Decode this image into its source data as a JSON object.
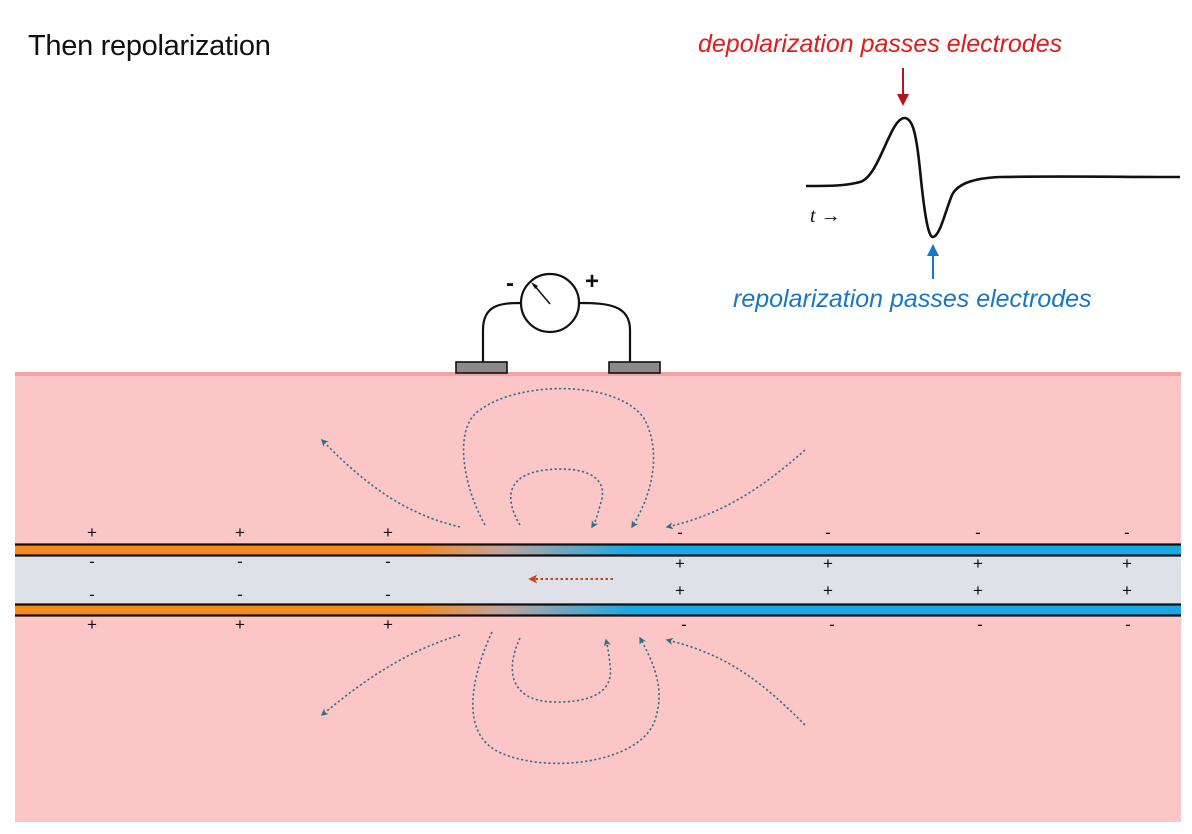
{
  "title": "Then  repolarization",
  "waveform": {
    "depolarization_label": "depolarization passes electrodes",
    "repolarization_label": "repolarization passes electrodes",
    "time_label": "t →"
  },
  "meter": {
    "minus": "-",
    "plus": "+"
  },
  "charges": {
    "polarized_upper_outer": "+",
    "polarized_upper_inner": "-",
    "polarized_lower_inner": "-",
    "polarized_lower_outer": "+",
    "depolarized_upper_outer": "-",
    "depolarized_upper_inner": "+",
    "depolarized_lower_inner": "+",
    "depolarized_lower_outer": "-"
  },
  "colors": {
    "tissue": "#fcc6c6",
    "tissue_edge": "#f2a4a4",
    "axon_interior": "#dfe1e8",
    "polarized_membrane": "#f5891c",
    "depolarized_membrane": "#17a9e8",
    "field_lines": "#2e6f8a",
    "propagation_arrow": "#c2431c",
    "depol_label": "#e01b1b",
    "repol_label": "#1877c4",
    "electrode": "#8a8a8a"
  }
}
